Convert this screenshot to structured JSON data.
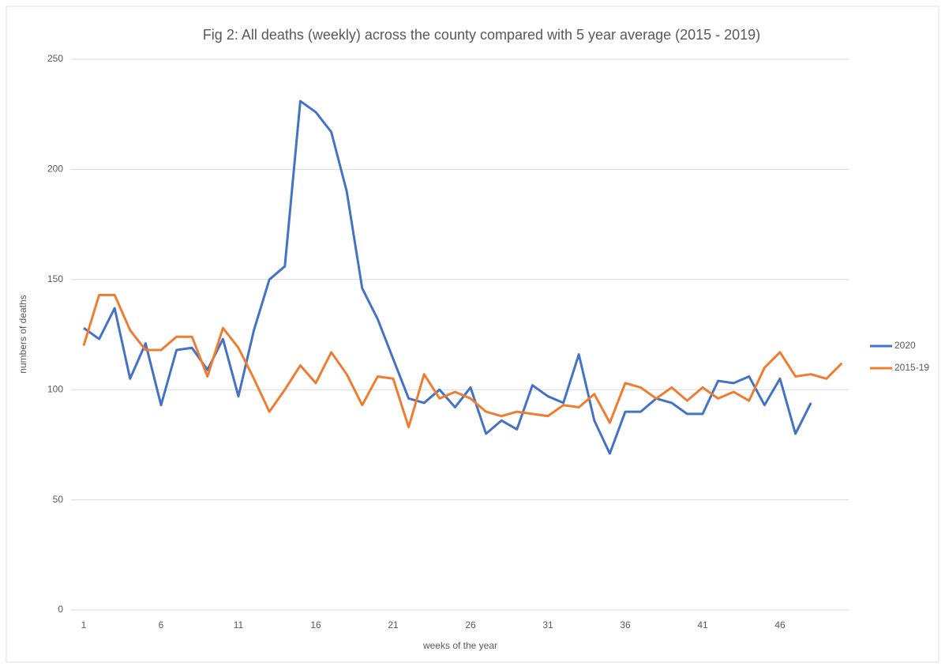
{
  "chart_data": {
    "type": "line",
    "title": "Fig 2: All deaths (weekly) across the county compared with 5 year average (2015 - 2019)",
    "x_label": "weeks of the year",
    "y_label": "numbers of deaths",
    "categories": [
      "1",
      null,
      null,
      null,
      null,
      "6",
      null,
      null,
      null,
      null,
      "11",
      null,
      null,
      null,
      null,
      "16",
      null,
      null,
      null,
      null,
      "21",
      null,
      null,
      null,
      null,
      "26",
      null,
      null,
      null,
      null,
      "31",
      null,
      null,
      null,
      null,
      "36",
      null,
      null,
      null,
      null,
      "41",
      null,
      null,
      null,
      null,
      "46",
      null,
      null,
      null,
      null
    ],
    "series": [
      {
        "name": "2020",
        "color": "#4472c4",
        "values": [
          128,
          123,
          137,
          105,
          121,
          93,
          118,
          119,
          109,
          123,
          97,
          127,
          150,
          156,
          231,
          226,
          217,
          190,
          146,
          132,
          114,
          96,
          94,
          100,
          92,
          101,
          80,
          86,
          82,
          102,
          97,
          94,
          116,
          86,
          71,
          90,
          90,
          96,
          94,
          89,
          89,
          104,
          103,
          106,
          93,
          105,
          80,
          94,
          null,
          null
        ]
      },
      {
        "name": "2015-19",
        "color": "#ed7d31",
        "values": [
          120,
          143,
          143,
          127,
          118,
          118,
          124,
          124,
          106,
          128,
          119,
          105,
          90,
          100,
          111,
          103,
          117,
          107,
          93,
          106,
          105,
          83,
          107,
          96,
          99,
          96,
          90,
          88,
          90,
          89,
          88,
          93,
          92,
          98,
          85,
          103,
          101,
          96,
          101,
          95,
          101,
          96,
          99,
          95,
          110,
          117,
          106,
          107,
          105,
          112
        ]
      }
    ],
    "ylim": [
      0,
      250
    ],
    "yticks": [
      0,
      50,
      100,
      150,
      200,
      250
    ],
    "grid": true,
    "legend": "right"
  }
}
